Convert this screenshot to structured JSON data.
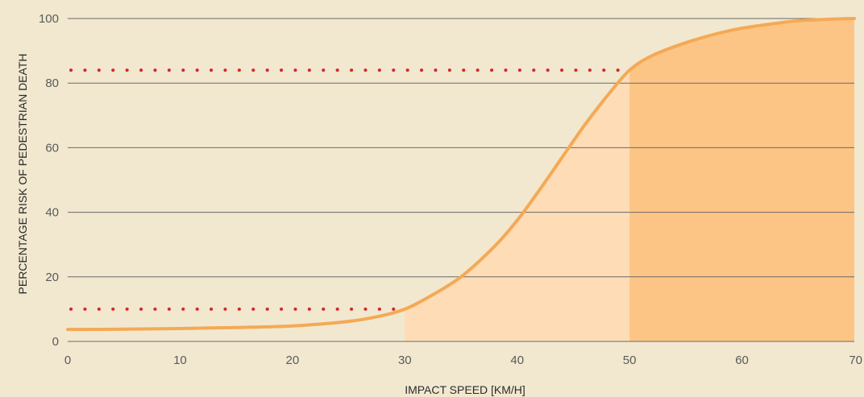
{
  "chart_data": {
    "type": "area",
    "title": "",
    "xlabel": "IMPACT SPEED [KM/H]",
    "ylabel": "PERCENTAGE RISK OF PEDESTRIAN DEATH",
    "xlim": [
      0,
      70
    ],
    "ylim": [
      0,
      100
    ],
    "x_ticks": [
      "0",
      "10",
      "20",
      "30",
      "40",
      "50",
      "60",
      "70"
    ],
    "y_ticks": [
      "0",
      "20",
      "40",
      "60",
      "80",
      "100"
    ],
    "grid": "horizontal",
    "series": [
      {
        "x": [
          0,
          5,
          10,
          15,
          20,
          25,
          28,
          30,
          32,
          35,
          38,
          40,
          42,
          44,
          46,
          48,
          50,
          52,
          55,
          58,
          60,
          63,
          65,
          68,
          70
        ],
        "y": [
          3.7,
          3.8,
          4.0,
          4.3,
          4.8,
          6.2,
          8.0,
          10.0,
          13.5,
          20,
          29.5,
          37.5,
          47,
          57,
          67,
          76,
          84,
          88.5,
          92.5,
          95.5,
          97,
          98.5,
          99.3,
          99.8,
          100
        ]
      }
    ],
    "shaded_regions": [
      {
        "from": 30,
        "to": 50,
        "color": "#fddcb6"
      },
      {
        "from": 50,
        "to": 70,
        "color": "#fdc585"
      }
    ],
    "reference_lines": [
      {
        "y": 10,
        "x_to": 30,
        "style": "dotted",
        "color": "#d42a2a"
      },
      {
        "y": 84,
        "x_to": 50,
        "style": "dotted",
        "color": "#d42a2a"
      }
    ],
    "colors": {
      "background": "#f2e8d0",
      "curve": "#f5a955",
      "grid": "#6a6a6a"
    }
  }
}
